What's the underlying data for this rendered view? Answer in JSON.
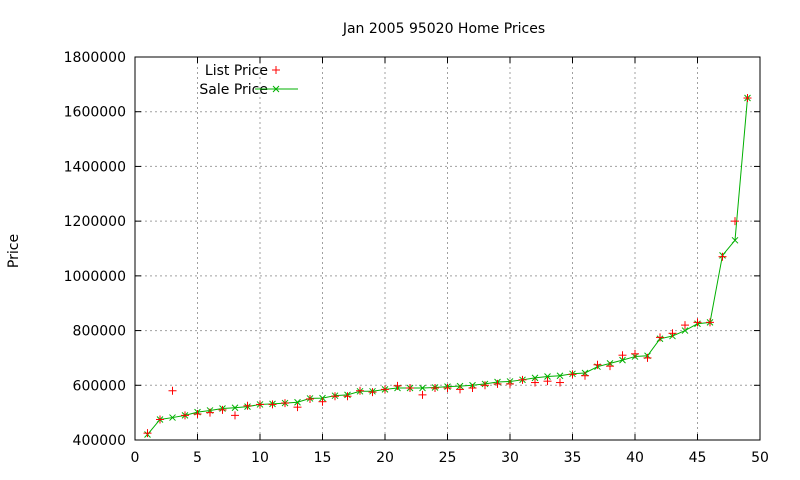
{
  "chart_data": {
    "type": "scatter",
    "title": "Jan 2005 95020 Home Prices",
    "xlabel": "",
    "ylabel": "Price",
    "xlim": [
      0,
      50
    ],
    "ylim": [
      400000,
      1800000
    ],
    "grid": true,
    "legend_position": "top-left",
    "x_ticks": [
      "0",
      "5",
      "10",
      "15",
      "20",
      "25",
      "30",
      "35",
      "40",
      "45",
      "50"
    ],
    "y_ticks": [
      "400000",
      "600000",
      "800000",
      "1000000",
      "1200000",
      "1400000",
      "1600000",
      "1800000"
    ],
    "series": [
      {
        "name": "List Price",
        "style": "points",
        "marker": "plus",
        "color": "#ff0000",
        "x": [
          1,
          2,
          3,
          4,
          5,
          6,
          7,
          8,
          9,
          10,
          11,
          12,
          13,
          14,
          15,
          16,
          17,
          18,
          19,
          20,
          21,
          22,
          23,
          24,
          25,
          26,
          27,
          28,
          29,
          30,
          31,
          32,
          33,
          34,
          35,
          36,
          37,
          38,
          39,
          40,
          41,
          42,
          43,
          44,
          45,
          46,
          47,
          48,
          49
        ],
        "y": [
          425000,
          475000,
          580000,
          490000,
          495000,
          500000,
          510000,
          490000,
          525000,
          530000,
          530000,
          535000,
          520000,
          550000,
          540000,
          560000,
          560000,
          580000,
          575000,
          585000,
          598000,
          590000,
          565000,
          590000,
          590000,
          585000,
          590000,
          600000,
          605000,
          605000,
          620000,
          610000,
          615000,
          610000,
          640000,
          635000,
          675000,
          670000,
          710000,
          715000,
          700000,
          775000,
          790000,
          820000,
          830000,
          830000,
          1070000,
          1200000,
          1650000
        ]
      },
      {
        "name": "Sale Price",
        "style": "linespoints",
        "marker": "cross",
        "color": "#00b000",
        "x": [
          1,
          2,
          3,
          4,
          5,
          6,
          7,
          8,
          9,
          10,
          11,
          12,
          13,
          14,
          15,
          16,
          17,
          18,
          19,
          20,
          21,
          22,
          23,
          24,
          25,
          26,
          27,
          28,
          29,
          30,
          31,
          32,
          33,
          34,
          35,
          36,
          37,
          38,
          39,
          40,
          41,
          42,
          43,
          44,
          45,
          46,
          47,
          48,
          49
        ],
        "y": [
          420000,
          475000,
          482000,
          490000,
          502000,
          508000,
          515000,
          518000,
          522000,
          530000,
          532000,
          535000,
          538000,
          552000,
          553000,
          562000,
          565000,
          578000,
          578000,
          585000,
          590000,
          590000,
          590000,
          592000,
          595000,
          597000,
          600000,
          605000,
          612000,
          614000,
          620000,
          627000,
          632000,
          635000,
          642000,
          645000,
          668000,
          680000,
          692000,
          705000,
          708000,
          770000,
          780000,
          800000,
          825000,
          830000,
          1075000,
          1130000,
          1650000
        ]
      }
    ]
  }
}
